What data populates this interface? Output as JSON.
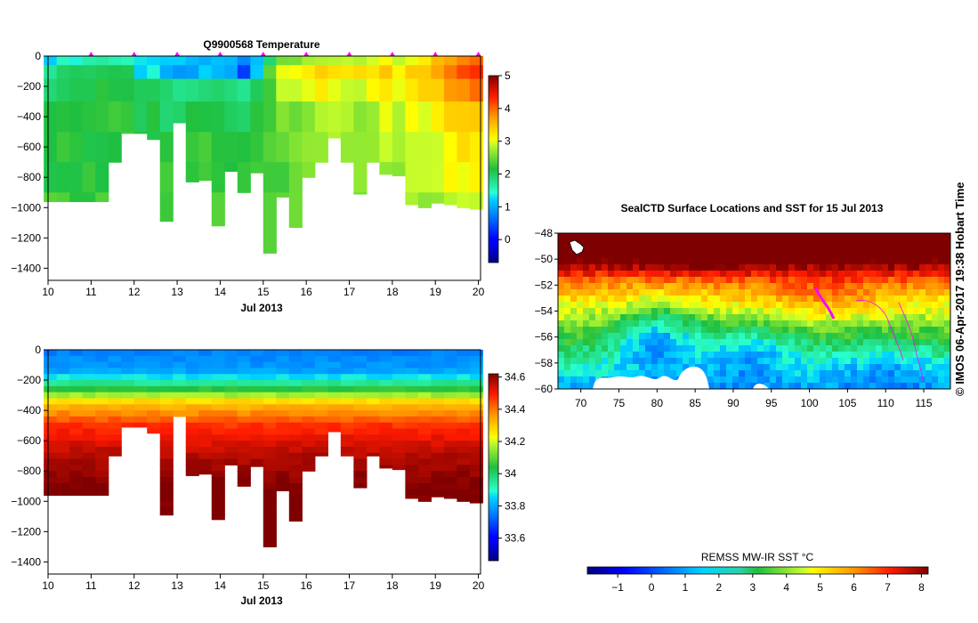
{
  "chart_data": [
    {
      "id": "temperature",
      "type": "heatmap",
      "title": "Q9900568  Temperature",
      "xlabel": "Jul 2013",
      "ylabel": "",
      "xlim": [
        10,
        20.05
      ],
      "ylim": [
        -1480,
        0
      ],
      "xticks": [
        10,
        11,
        12,
        13,
        14,
        15,
        16,
        17,
        18,
        19,
        20
      ],
      "yticks": [
        0,
        -200,
        -400,
        -600,
        -800,
        -1000,
        -1200,
        -1400
      ],
      "colorbar": {
        "min": -0.7,
        "max": 5,
        "ticks": [
          0,
          1,
          2,
          3,
          4,
          5
        ]
      },
      "markers_x": [
        11,
        12,
        13,
        14,
        15,
        16,
        17,
        18,
        19,
        20
      ],
      "profiles": [
        {
          "x": 10.05,
          "depth": 960,
          "vals": [
            1.3,
            1.8,
            2.0,
            2.2,
            2.2,
            2.2,
            2.3
          ]
        },
        {
          "x": 10.35,
          "depth": 960,
          "vals": [
            1.4,
            1.9,
            2.1,
            2.2,
            2.2,
            2.2,
            2.3
          ]
        },
        {
          "x": 10.65,
          "depth": 960,
          "vals": [
            1.5,
            2.0,
            2.1,
            2.2,
            2.2,
            2.2,
            2.3
          ]
        },
        {
          "x": 10.95,
          "depth": 960,
          "vals": [
            1.6,
            2.0,
            2.1,
            2.1,
            2.2,
            2.2,
            2.3
          ]
        },
        {
          "x": 11.25,
          "depth": 960,
          "vals": [
            1.7,
            2.1,
            2.1,
            2.2,
            2.2,
            2.2,
            2.3
          ]
        },
        {
          "x": 11.55,
          "depth": 700,
          "vals": [
            1.6,
            2.0,
            2.1,
            2.2,
            2.2,
            2.2,
            2.3
          ]
        },
        {
          "x": 11.85,
          "depth": 510,
          "vals": [
            1.5,
            2.0,
            2.1,
            2.2,
            2.2,
            2.2,
            2.3
          ]
        },
        {
          "x": 12.15,
          "depth": 510,
          "vals": [
            1.4,
            1.2,
            2.0,
            2.1,
            2.2,
            2.2,
            2.3
          ]
        },
        {
          "x": 12.45,
          "depth": 550,
          "vals": [
            1.3,
            1.4,
            2.0,
            2.1,
            2.2,
            2.2,
            2.3
          ]
        },
        {
          "x": 12.75,
          "depth": 1090,
          "vals": [
            1.2,
            1.0,
            1.9,
            2.0,
            2.2,
            2.2,
            2.3
          ]
        },
        {
          "x": 13.05,
          "depth": 440,
          "vals": [
            1.1,
            1.0,
            1.8,
            2.0,
            2.2,
            2.2,
            2.3
          ]
        },
        {
          "x": 13.35,
          "depth": 830,
          "vals": [
            1.0,
            0.9,
            1.7,
            2.1,
            2.2,
            2.2,
            2.3
          ]
        },
        {
          "x": 13.65,
          "depth": 820,
          "vals": [
            1.1,
            1.2,
            1.8,
            2.1,
            2.3,
            2.2,
            2.3
          ]
        },
        {
          "x": 13.95,
          "depth": 1120,
          "vals": [
            1.0,
            1.1,
            2.0,
            2.2,
            2.3,
            2.2,
            2.3
          ]
        },
        {
          "x": 14.25,
          "depth": 760,
          "vals": [
            1.0,
            0.9,
            1.8,
            2.1,
            2.2,
            2.2,
            2.3
          ]
        },
        {
          "x": 14.55,
          "depth": 900,
          "vals": [
            0.8,
            0.4,
            1.7,
            2.0,
            2.2,
            2.2,
            2.3
          ]
        },
        {
          "x": 14.85,
          "depth": 770,
          "vals": [
            1.0,
            1.2,
            1.9,
            2.2,
            2.3,
            2.3,
            2.3
          ]
        },
        {
          "x": 15.15,
          "depth": 1300,
          "vals": [
            1.9,
            2.5,
            2.3,
            2.3,
            2.4,
            2.3,
            2.3
          ]
        },
        {
          "x": 15.45,
          "depth": 930,
          "vals": [
            2.5,
            2.9,
            2.8,
            2.7,
            2.5,
            2.4,
            2.4
          ]
        },
        {
          "x": 15.75,
          "depth": 1130,
          "vals": [
            2.6,
            3.0,
            2.9,
            2.6,
            2.5,
            2.4,
            2.4
          ]
        },
        {
          "x": 16.05,
          "depth": 800,
          "vals": [
            2.7,
            3.1,
            3.0,
            2.7,
            2.6,
            2.5,
            2.5
          ]
        },
        {
          "x": 16.35,
          "depth": 700,
          "vals": [
            2.8,
            3.3,
            3.2,
            2.8,
            2.7,
            2.6,
            2.5
          ]
        },
        {
          "x": 16.65,
          "depth": 540,
          "vals": [
            2.8,
            3.4,
            3.1,
            2.8,
            2.7,
            2.6,
            2.5
          ]
        },
        {
          "x": 16.95,
          "depth": 700,
          "vals": [
            2.9,
            3.2,
            3.0,
            2.9,
            2.7,
            2.6,
            2.5
          ]
        },
        {
          "x": 17.25,
          "depth": 910,
          "vals": [
            2.9,
            3.2,
            2.9,
            2.7,
            2.6,
            2.6,
            2.5
          ]
        },
        {
          "x": 17.55,
          "depth": 700,
          "vals": [
            3.0,
            3.3,
            3.0,
            2.8,
            2.7,
            2.6,
            2.5
          ]
        },
        {
          "x": 17.85,
          "depth": 780,
          "vals": [
            3.1,
            3.4,
            3.2,
            2.9,
            2.8,
            2.7,
            2.6
          ]
        },
        {
          "x": 18.15,
          "depth": 790,
          "vals": [
            3.0,
            3.2,
            3.1,
            2.9,
            2.8,
            2.7,
            2.6
          ]
        },
        {
          "x": 18.45,
          "depth": 980,
          "vals": [
            3.1,
            3.3,
            3.2,
            3.0,
            2.9,
            2.8,
            2.7
          ]
        },
        {
          "x": 18.75,
          "depth": 1000,
          "vals": [
            3.2,
            3.5,
            3.3,
            3.0,
            2.9,
            2.8,
            2.7
          ]
        },
        {
          "x": 19.05,
          "depth": 970,
          "vals": [
            3.4,
            3.7,
            3.5,
            3.1,
            3.0,
            2.9,
            2.7
          ]
        },
        {
          "x": 19.35,
          "depth": 980,
          "vals": [
            3.6,
            3.9,
            3.7,
            3.3,
            3.1,
            3.0,
            2.8
          ]
        },
        {
          "x": 19.65,
          "depth": 1000,
          "vals": [
            3.9,
            4.2,
            3.9,
            3.4,
            3.2,
            3.0,
            2.9
          ]
        },
        {
          "x": 19.95,
          "depth": 1010,
          "vals": [
            4.0,
            4.3,
            4.0,
            3.5,
            3.3,
            3.1,
            2.9
          ]
        }
      ]
    },
    {
      "id": "salinity",
      "type": "heatmap",
      "title": "",
      "xlabel": "Jul 2013",
      "ylabel": "",
      "xlim": [
        10,
        20.05
      ],
      "ylim": [
        -1480,
        0
      ],
      "xticks": [
        10,
        11,
        12,
        13,
        14,
        15,
        16,
        17,
        18,
        19,
        20
      ],
      "yticks": [
        0,
        -200,
        -400,
        -600,
        -800,
        -1000,
        -1200,
        -1400
      ],
      "colorbar": {
        "min": 33.46,
        "max": 34.62,
        "ticks": [
          33.6,
          33.8,
          34,
          34.2,
          34.4,
          34.6
        ]
      },
      "depth_stops": [
        0,
        150,
        250,
        350,
        500,
        700,
        900,
        1300
      ],
      "profile_sal": [
        33.75,
        33.8,
        34.02,
        34.3,
        34.47,
        34.57,
        34.62,
        34.66
      ]
    },
    {
      "id": "sst_map",
      "type": "heatmap",
      "title": "SealCTD Surface Locations and SST for 15 Jul 2013",
      "xlim": [
        67,
        118.5
      ],
      "ylim": [
        -60,
        -48
      ],
      "xticks": [
        70,
        75,
        80,
        85,
        90,
        95,
        100,
        105,
        110,
        115
      ],
      "yticks": [
        -48,
        -50,
        -52,
        -54,
        -56,
        -58,
        -60
      ],
      "colorbar": {
        "label": "REMSS MW-IR SST °C",
        "min": -1.9,
        "max": 8.2,
        "ticks": [
          -1,
          0,
          1,
          2,
          3,
          4,
          5,
          6,
          7,
          8
        ]
      }
    }
  ],
  "credit": "© IMOS 06-Apr-2017 19:38 Hobart Time",
  "colors": {
    "marker": "#ff00ff",
    "track": "#ff00ff"
  }
}
